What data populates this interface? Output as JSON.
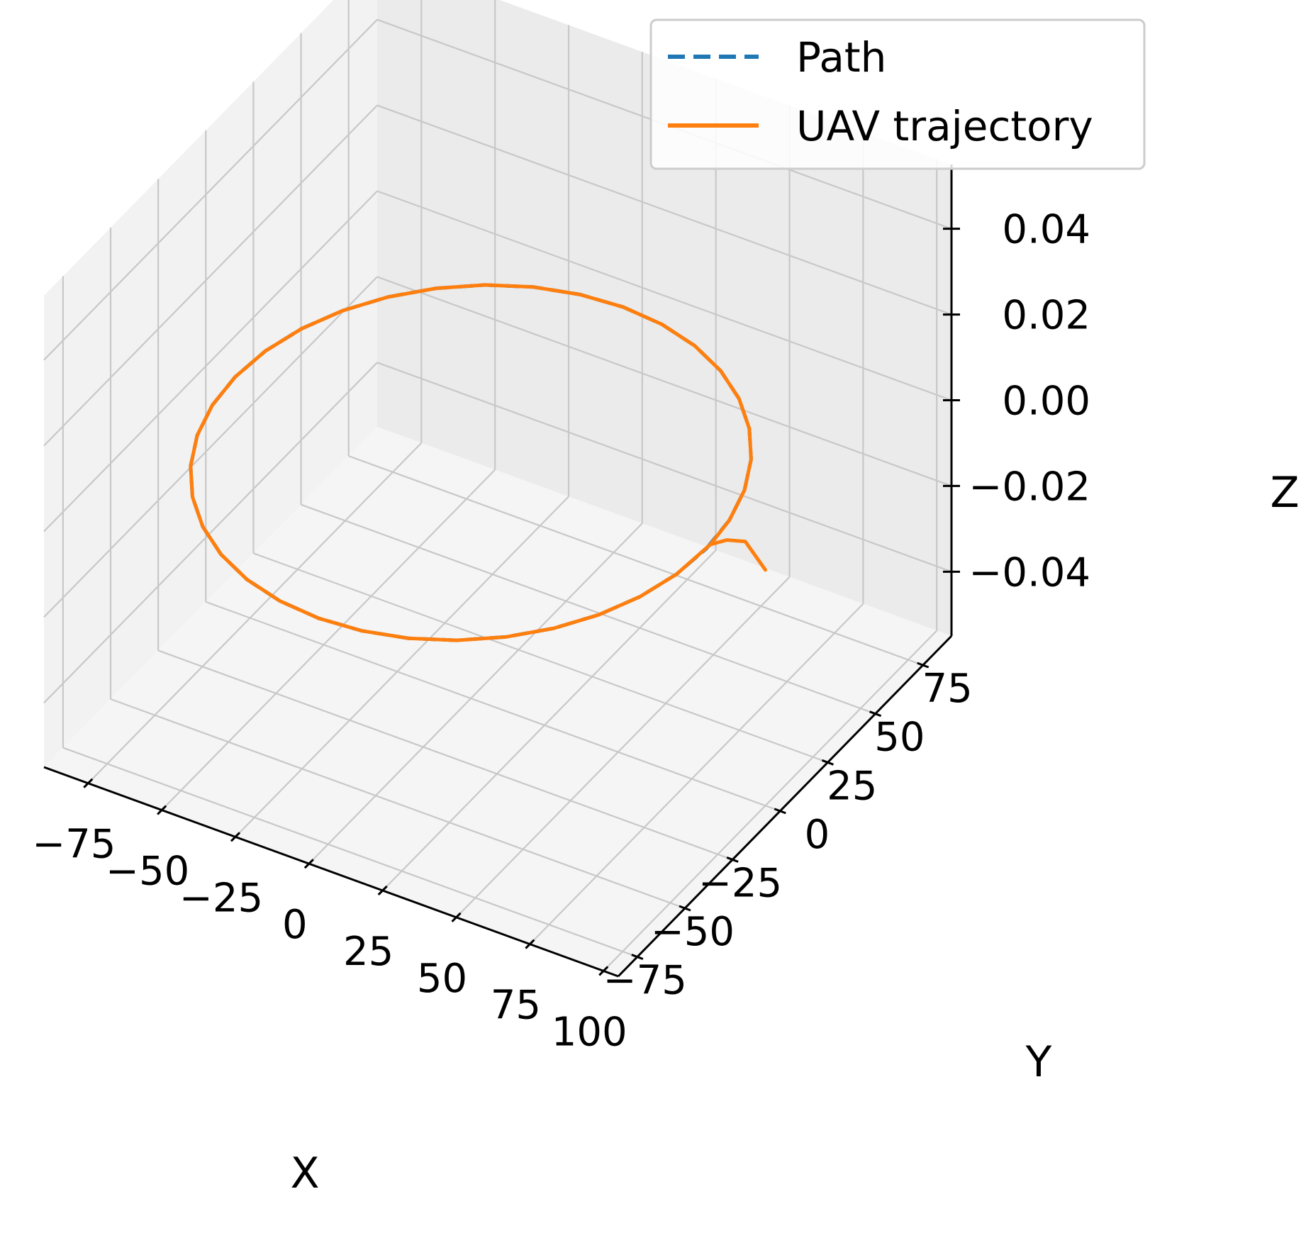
{
  "chart_data": {
    "type": "line",
    "projection": "3d",
    "title": "",
    "xlabel": "X",
    "ylabel": "Y",
    "zlabel": "Z",
    "xlim": [
      -90,
      105
    ],
    "ylim": [
      -85,
      90
    ],
    "zlim": [
      -0.055,
      0.055
    ],
    "xticks": [
      "−75",
      "−50",
      "−25",
      "0",
      "25",
      "50",
      "75",
      "100"
    ],
    "yticks": [
      "−75",
      "−50",
      "−25",
      "0",
      "25",
      "50",
      "75"
    ],
    "zticks": [
      "−0.04",
      "−0.02",
      "0.00",
      "0.02",
      "0.04"
    ],
    "grid": true,
    "legend_position": "top-right",
    "series": [
      {
        "name": "Path",
        "style": "dashed",
        "color": "#1f77b4",
        "description": "circle of radius 80 centered at origin, z = 0",
        "x": [
          80,
          78.8,
          75.2,
          69.3,
          61.3,
          51.4,
          40,
          27.4,
          13.9,
          0,
          -13.9,
          -27.4,
          -40,
          -51.4,
          -61.3,
          -69.3,
          -75.2,
          -78.8,
          -80,
          -78.8,
          -75.2,
          -69.3,
          -61.3,
          -51.4,
          -40,
          -27.4,
          -13.9,
          0,
          13.9,
          27.4,
          40,
          51.4,
          61.3,
          69.3,
          75.2,
          78.8,
          80
        ],
        "y": [
          0,
          13.9,
          27.4,
          40,
          51.4,
          61.3,
          69.3,
          75.2,
          78.8,
          80,
          78.8,
          75.2,
          69.3,
          61.3,
          51.4,
          40,
          27.4,
          13.9,
          0,
          -13.9,
          -27.4,
          -40,
          -51.4,
          -61.3,
          -69.3,
          -75.2,
          -78.8,
          -80,
          -78.8,
          -75.2,
          -69.3,
          -61.3,
          -51.4,
          -40,
          -27.4,
          -13.9,
          0
        ],
        "z": [
          0,
          0,
          0,
          0,
          0,
          0,
          0,
          0,
          0,
          0,
          0,
          0,
          0,
          0,
          0,
          0,
          0,
          0,
          0,
          0,
          0,
          0,
          0,
          0,
          0,
          0,
          0,
          0,
          0,
          0,
          0,
          0,
          0,
          0,
          0,
          0,
          0
        ]
      },
      {
        "name": "UAV trajectory",
        "style": "solid",
        "color": "#ff7f0e",
        "description": "starts near (100, 0), curves onto the circle, then follows it",
        "x": [
          100,
          94,
          88,
          83,
          80,
          78.8,
          75.2,
          69.3,
          61.3,
          51.4,
          40,
          27.4,
          13.9,
          0,
          -13.9,
          -27.4,
          -40,
          -51.4,
          -61.3,
          -69.3,
          -75.2,
          -78.8,
          -80,
          -78.8,
          -75.2,
          -69.3,
          -61.3,
          -51.4,
          -40,
          -27.4,
          -13.9,
          0,
          13.9,
          27.4,
          40,
          51.4,
          61.3,
          69.3,
          75.2,
          78.8,
          80
        ],
        "y": [
          0,
          4,
          8,
          6,
          2,
          13.9,
          27.4,
          40,
          51.4,
          61.3,
          69.3,
          75.2,
          78.8,
          80,
          78.8,
          75.2,
          69.3,
          61.3,
          51.4,
          40,
          27.4,
          13.9,
          0,
          -13.9,
          -27.4,
          -40,
          -51.4,
          -61.3,
          -69.3,
          -75.2,
          -78.8,
          -80,
          -78.8,
          -75.2,
          -69.3,
          -61.3,
          -51.4,
          -40,
          -27.4,
          -13.9,
          2
        ],
        "z": [
          0,
          0,
          0,
          0,
          0,
          0,
          0,
          0,
          0,
          0,
          0,
          0,
          0,
          0,
          0,
          0,
          0,
          0,
          0,
          0,
          0,
          0,
          0,
          0,
          0,
          0,
          0,
          0,
          0,
          0,
          0,
          0,
          0,
          0,
          0,
          0,
          0,
          0,
          0,
          0,
          0
        ]
      }
    ]
  }
}
